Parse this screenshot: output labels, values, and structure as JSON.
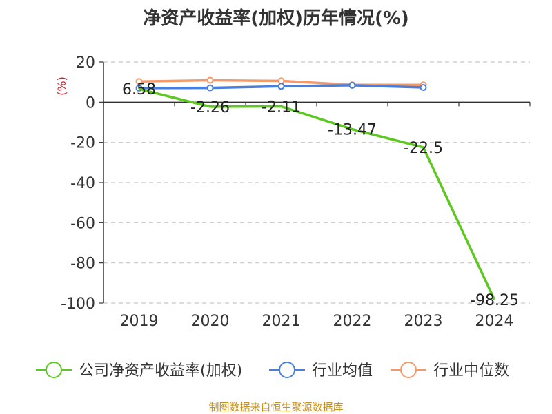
{
  "chart_data": {
    "type": "line",
    "title": "净资产收益率(加权)历年情况(%)",
    "ylabel": "(%)",
    "xlabel": "",
    "categories": [
      "2019",
      "2020",
      "2021",
      "2022",
      "2023",
      "2024"
    ],
    "ylim": [
      -100,
      20
    ],
    "yticks": [
      20,
      0,
      -20,
      -40,
      -60,
      -80,
      -100
    ],
    "grid": true,
    "legend_position": "bottom",
    "series": [
      {
        "name": "公司净资产收益率(加权)",
        "color": "#5cc820",
        "values": [
          6.58,
          -2.26,
          -2.11,
          -13.47,
          -22.5,
          -98.25
        ],
        "labels": [
          "6.58",
          "-2.26",
          "-2.11",
          "-13.47",
          "-22.5",
          "-98.25"
        ]
      },
      {
        "name": "行业均值",
        "color": "#4a7fd9",
        "values": [
          7.0,
          7.1,
          7.9,
          8.4,
          7.3,
          null
        ]
      },
      {
        "name": "行业中位数",
        "color": "#f39a6b",
        "values": [
          10.3,
          10.9,
          10.6,
          8.6,
          8.6,
          null
        ]
      }
    ]
  },
  "source_note": "制图数据来自恒生聚源数据库"
}
